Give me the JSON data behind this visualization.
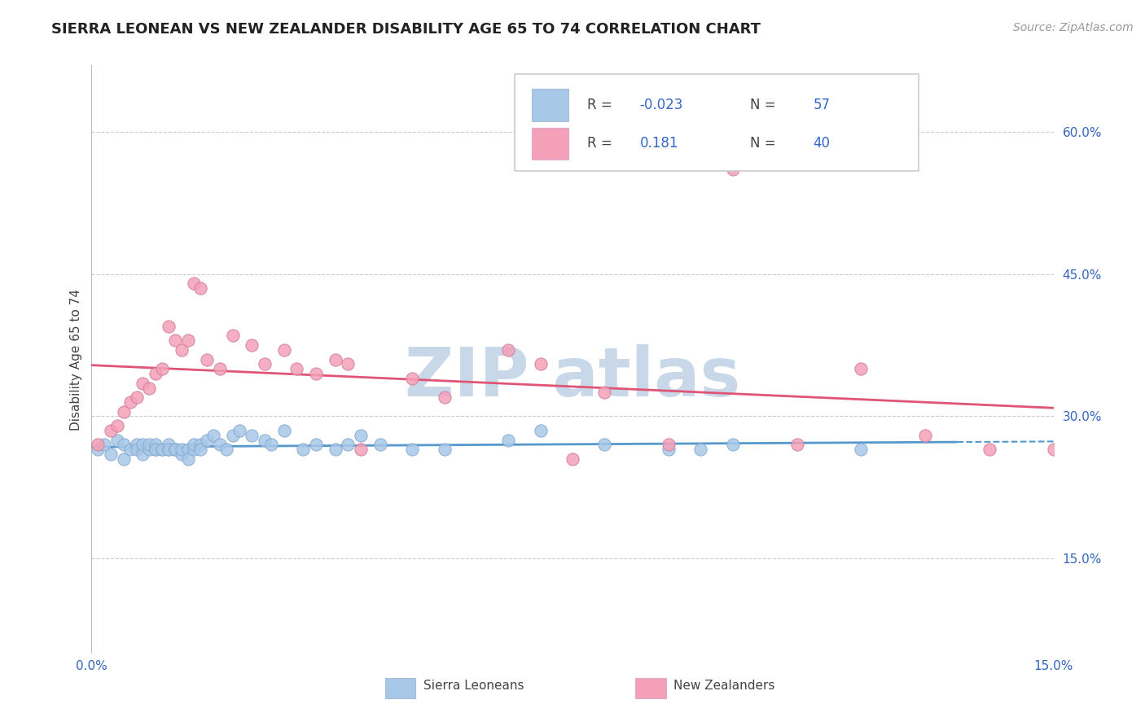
{
  "title": "SIERRA LEONEAN VS NEW ZEALANDER DISABILITY AGE 65 TO 74 CORRELATION CHART",
  "source": "Source: ZipAtlas.com",
  "ylabel": "Disability Age 65 to 74",
  "xlim": [
    0.0,
    0.15
  ],
  "ylim": [
    0.05,
    0.67
  ],
  "ytick_vals": [
    0.15,
    0.3,
    0.45,
    0.6
  ],
  "xtick_vals": [
    0.0,
    0.15
  ],
  "r_blue": -0.023,
  "n_blue": 57,
  "r_pink": 0.181,
  "n_pink": 40,
  "color_blue": "#a8c8e8",
  "color_pink": "#f4a0b8",
  "line_blue_color": "#5599cc",
  "line_pink_color": "#e05575",
  "background_color": "#ffffff",
  "grid_color": "#cccccc",
  "title_fontsize": 13,
  "label_fontsize": 11,
  "tick_fontsize": 11,
  "source_fontsize": 10,
  "watermark_color": "#c8d8e8",
  "watermark_fontsize": 60,
  "blue_x": [
    0.001,
    0.002,
    0.003,
    0.004,
    0.005,
    0.005,
    0.006,
    0.007,
    0.007,
    0.008,
    0.008,
    0.009,
    0.009,
    0.01,
    0.01,
    0.01,
    0.011,
    0.011,
    0.012,
    0.012,
    0.012,
    0.013,
    0.013,
    0.013,
    0.014,
    0.014,
    0.015,
    0.015,
    0.016,
    0.016,
    0.017,
    0.017,
    0.018,
    0.019,
    0.02,
    0.021,
    0.022,
    0.023,
    0.025,
    0.027,
    0.028,
    0.03,
    0.033,
    0.035,
    0.038,
    0.04,
    0.042,
    0.045,
    0.05,
    0.055,
    0.065,
    0.07,
    0.08,
    0.09,
    0.095,
    0.1,
    0.12
  ],
  "blue_y": [
    0.265,
    0.27,
    0.26,
    0.275,
    0.27,
    0.255,
    0.265,
    0.27,
    0.265,
    0.26,
    0.27,
    0.265,
    0.27,
    0.265,
    0.27,
    0.265,
    0.265,
    0.265,
    0.265,
    0.27,
    0.265,
    0.265,
    0.265,
    0.265,
    0.26,
    0.265,
    0.265,
    0.255,
    0.265,
    0.27,
    0.27,
    0.265,
    0.275,
    0.28,
    0.27,
    0.265,
    0.28,
    0.285,
    0.28,
    0.275,
    0.27,
    0.285,
    0.265,
    0.27,
    0.265,
    0.27,
    0.28,
    0.27,
    0.265,
    0.265,
    0.275,
    0.285,
    0.27,
    0.265,
    0.265,
    0.27,
    0.265
  ],
  "pink_x": [
    0.001,
    0.003,
    0.004,
    0.005,
    0.006,
    0.007,
    0.008,
    0.009,
    0.01,
    0.011,
    0.012,
    0.013,
    0.014,
    0.015,
    0.016,
    0.017,
    0.018,
    0.02,
    0.022,
    0.025,
    0.027,
    0.03,
    0.032,
    0.035,
    0.038,
    0.04,
    0.042,
    0.05,
    0.055,
    0.065,
    0.07,
    0.075,
    0.08,
    0.09,
    0.1,
    0.11,
    0.12,
    0.13,
    0.14,
    0.15
  ],
  "pink_y": [
    0.27,
    0.285,
    0.29,
    0.305,
    0.315,
    0.32,
    0.335,
    0.33,
    0.345,
    0.35,
    0.395,
    0.38,
    0.37,
    0.38,
    0.44,
    0.435,
    0.36,
    0.35,
    0.385,
    0.375,
    0.355,
    0.37,
    0.35,
    0.345,
    0.36,
    0.355,
    0.265,
    0.34,
    0.32,
    0.37,
    0.355,
    0.255,
    0.325,
    0.27,
    0.56,
    0.27,
    0.35,
    0.28,
    0.265,
    0.265
  ]
}
